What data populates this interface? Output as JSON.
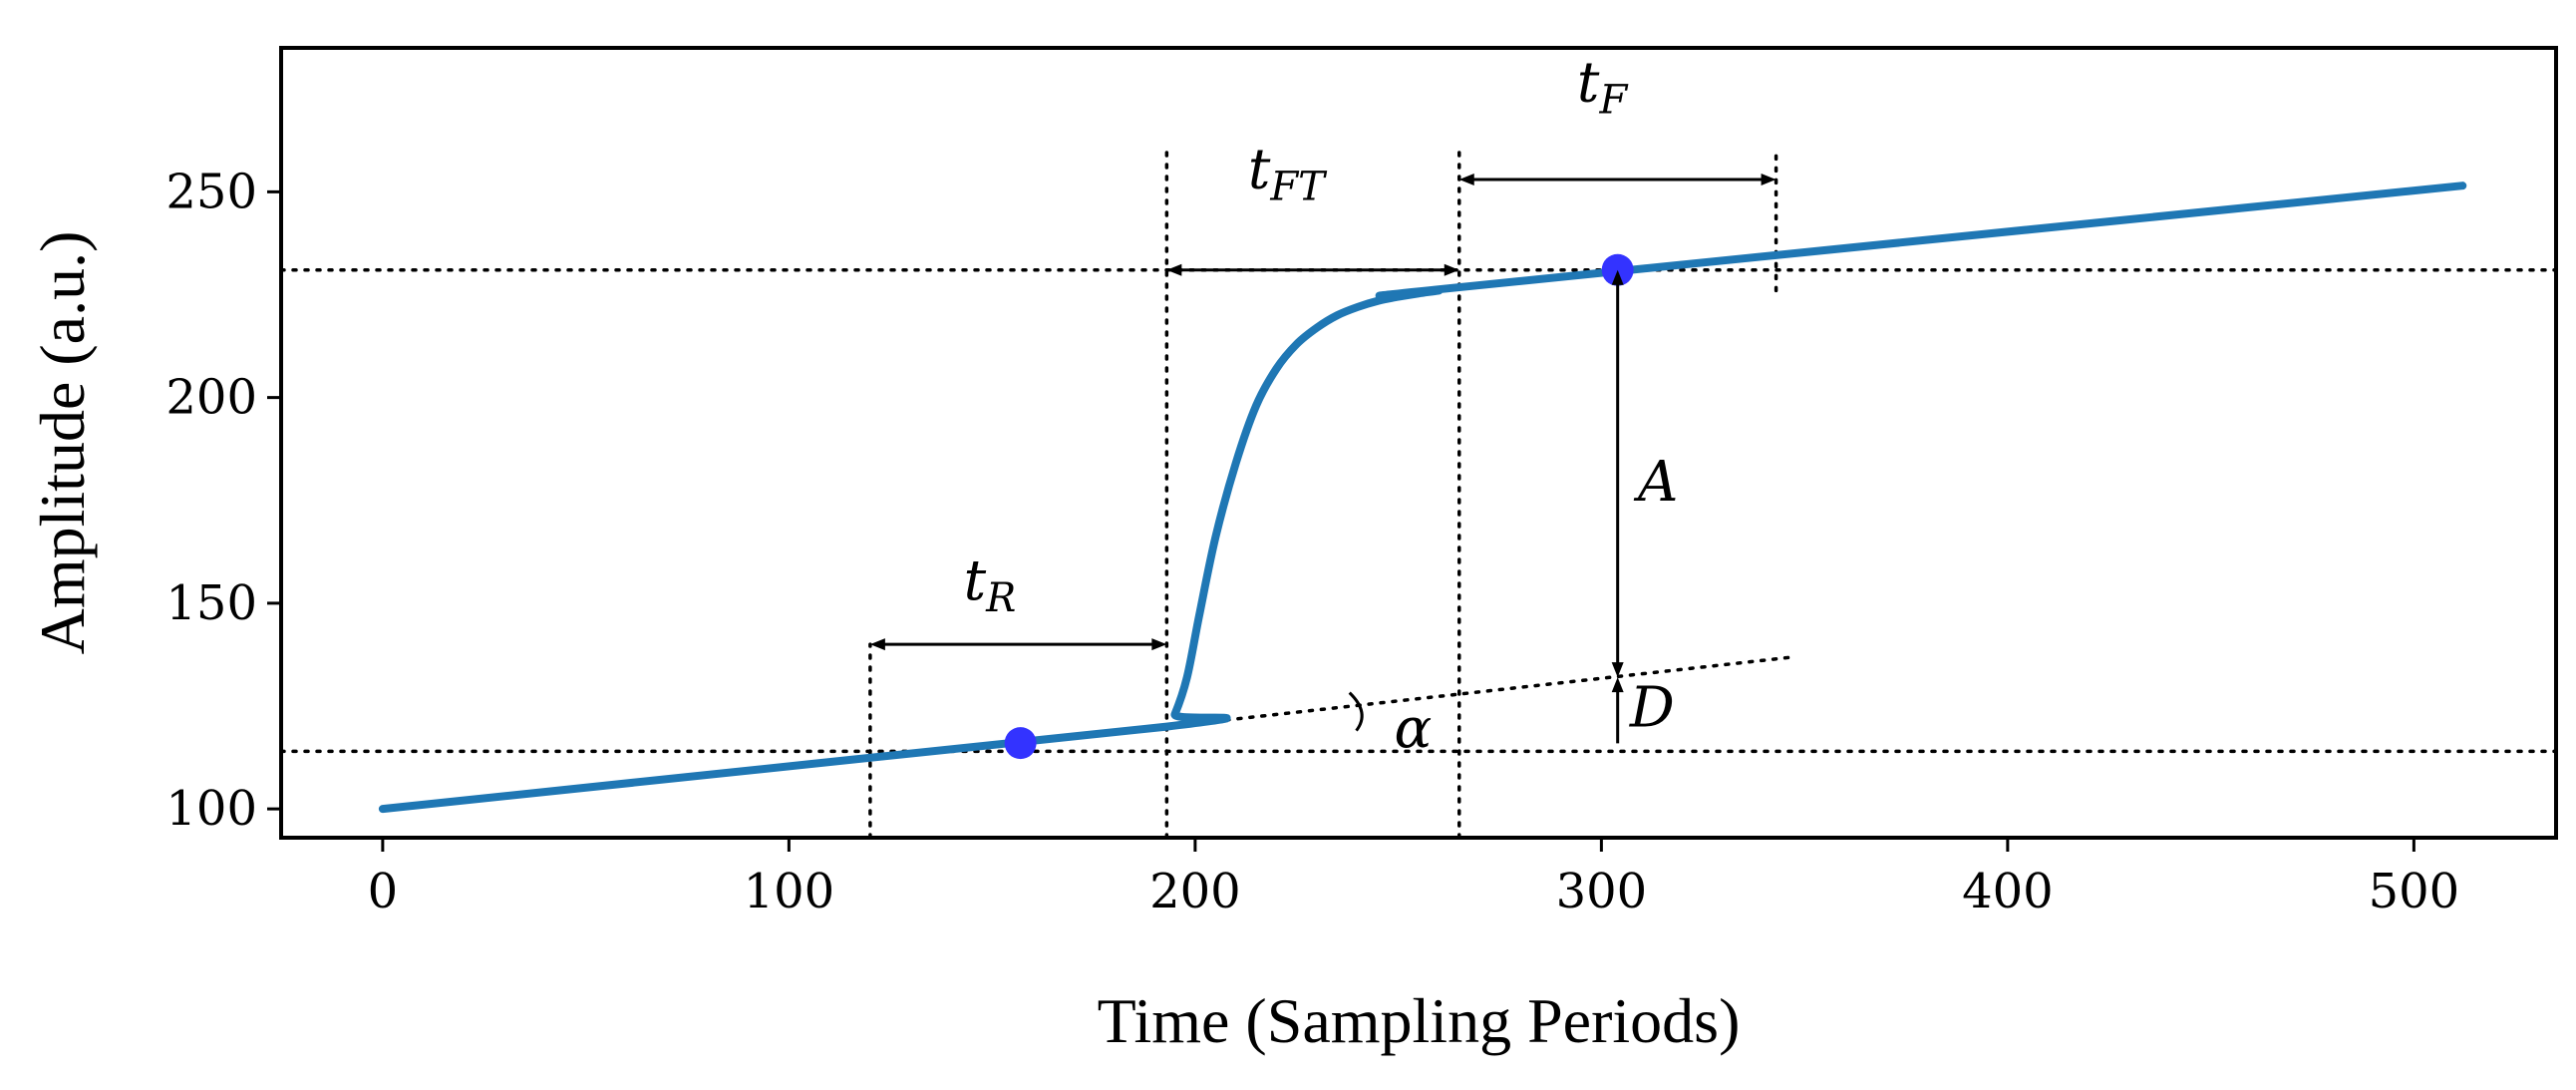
{
  "chart_data": {
    "type": "line",
    "title": "",
    "xlabel": "Time (Sampling Periods)",
    "ylabel": "Amplitude (a.u.)",
    "xlim": [
      -25,
      535
    ],
    "ylim": [
      93,
      285
    ],
    "xticks": [
      0,
      100,
      200,
      300,
      400,
      500
    ],
    "xtick_labels": [
      "0",
      "100",
      "200",
      "300",
      "400",
      "500"
    ],
    "yticks": [
      100,
      150,
      200,
      250
    ],
    "ytick_labels": [
      "100",
      "150",
      "200",
      "250"
    ],
    "grid": false,
    "legend": "none",
    "series": [
      {
        "name": "signal",
        "color": "#1f77b4",
        "x": [
          0,
          193,
          195,
          198,
          201,
          205,
          210,
          215,
          220,
          225,
          230,
          235,
          240,
          245,
          250,
          255,
          260,
          265,
          512
        ],
        "y": [
          100,
          120,
          123,
          132,
          147,
          166,
          184,
          198,
          207,
          213,
          217,
          220,
          222,
          223.5,
          224.5,
          225.3,
          226,
          226.8,
          251.5
        ]
      }
    ],
    "markers": [
      {
        "name": "rise-point",
        "x": 157,
        "y": 116,
        "color": "#3333ff"
      },
      {
        "name": "flat-point",
        "x": 304,
        "y": 231,
        "color": "#3333ff"
      }
    ],
    "reference_lines": {
      "horizontal": [
        {
          "name": "baseline",
          "y": 114
        },
        {
          "name": "plateau",
          "y": 231
        }
      ],
      "vertical": [
        {
          "name": "t-r-start",
          "x": 120,
          "y0": 93,
          "y1": 140
        },
        {
          "name": "t-ft-start",
          "x": 193,
          "y0": 93,
          "y1": 260
        },
        {
          "name": "t-ft-end",
          "x": 265,
          "y0": 93,
          "y1": 260
        },
        {
          "name": "t-f-end",
          "x": 343,
          "y0": 226,
          "y1": 260
        }
      ],
      "extension": {
        "name": "slope-extension",
        "x0": 193,
        "y0": 120,
        "x1": 348,
        "y1": 137
      }
    },
    "annotations": [
      {
        "name": "t-r",
        "main": "t",
        "sub": "R",
        "x": 143,
        "y": 151,
        "arrow": {
          "x0": 120,
          "x1": 193,
          "y": 140,
          "dir": "both"
        }
      },
      {
        "name": "t-ft",
        "main": "t",
        "sub": "FT",
        "x": 213,
        "y": 251,
        "arrow": {
          "x0": 193,
          "x1": 265,
          "y": 231,
          "dir": "both"
        }
      },
      {
        "name": "t-f",
        "main": "t",
        "sub": "F",
        "x": 294,
        "y": 272,
        "arrow": {
          "x0": 265,
          "x1": 343,
          "y": 253,
          "dir": "both"
        }
      },
      {
        "name": "a",
        "main": "A",
        "sub": "",
        "x": 309,
        "y": 175,
        "arrow": {
          "x": 304,
          "y0": 231,
          "y1": 132,
          "dir": "both"
        }
      },
      {
        "name": "d",
        "main": "D",
        "sub": "",
        "x": 307,
        "y": 120,
        "arrow": {
          "x": 304,
          "y0": 132,
          "y1": 114,
          "dir": "up"
        }
      },
      {
        "name": "alpha",
        "main": "α",
        "sub": "",
        "x": 249,
        "y": 115,
        "arc": {
          "cx": 193,
          "cy": 120,
          "angle": 0.3
        }
      }
    ]
  }
}
